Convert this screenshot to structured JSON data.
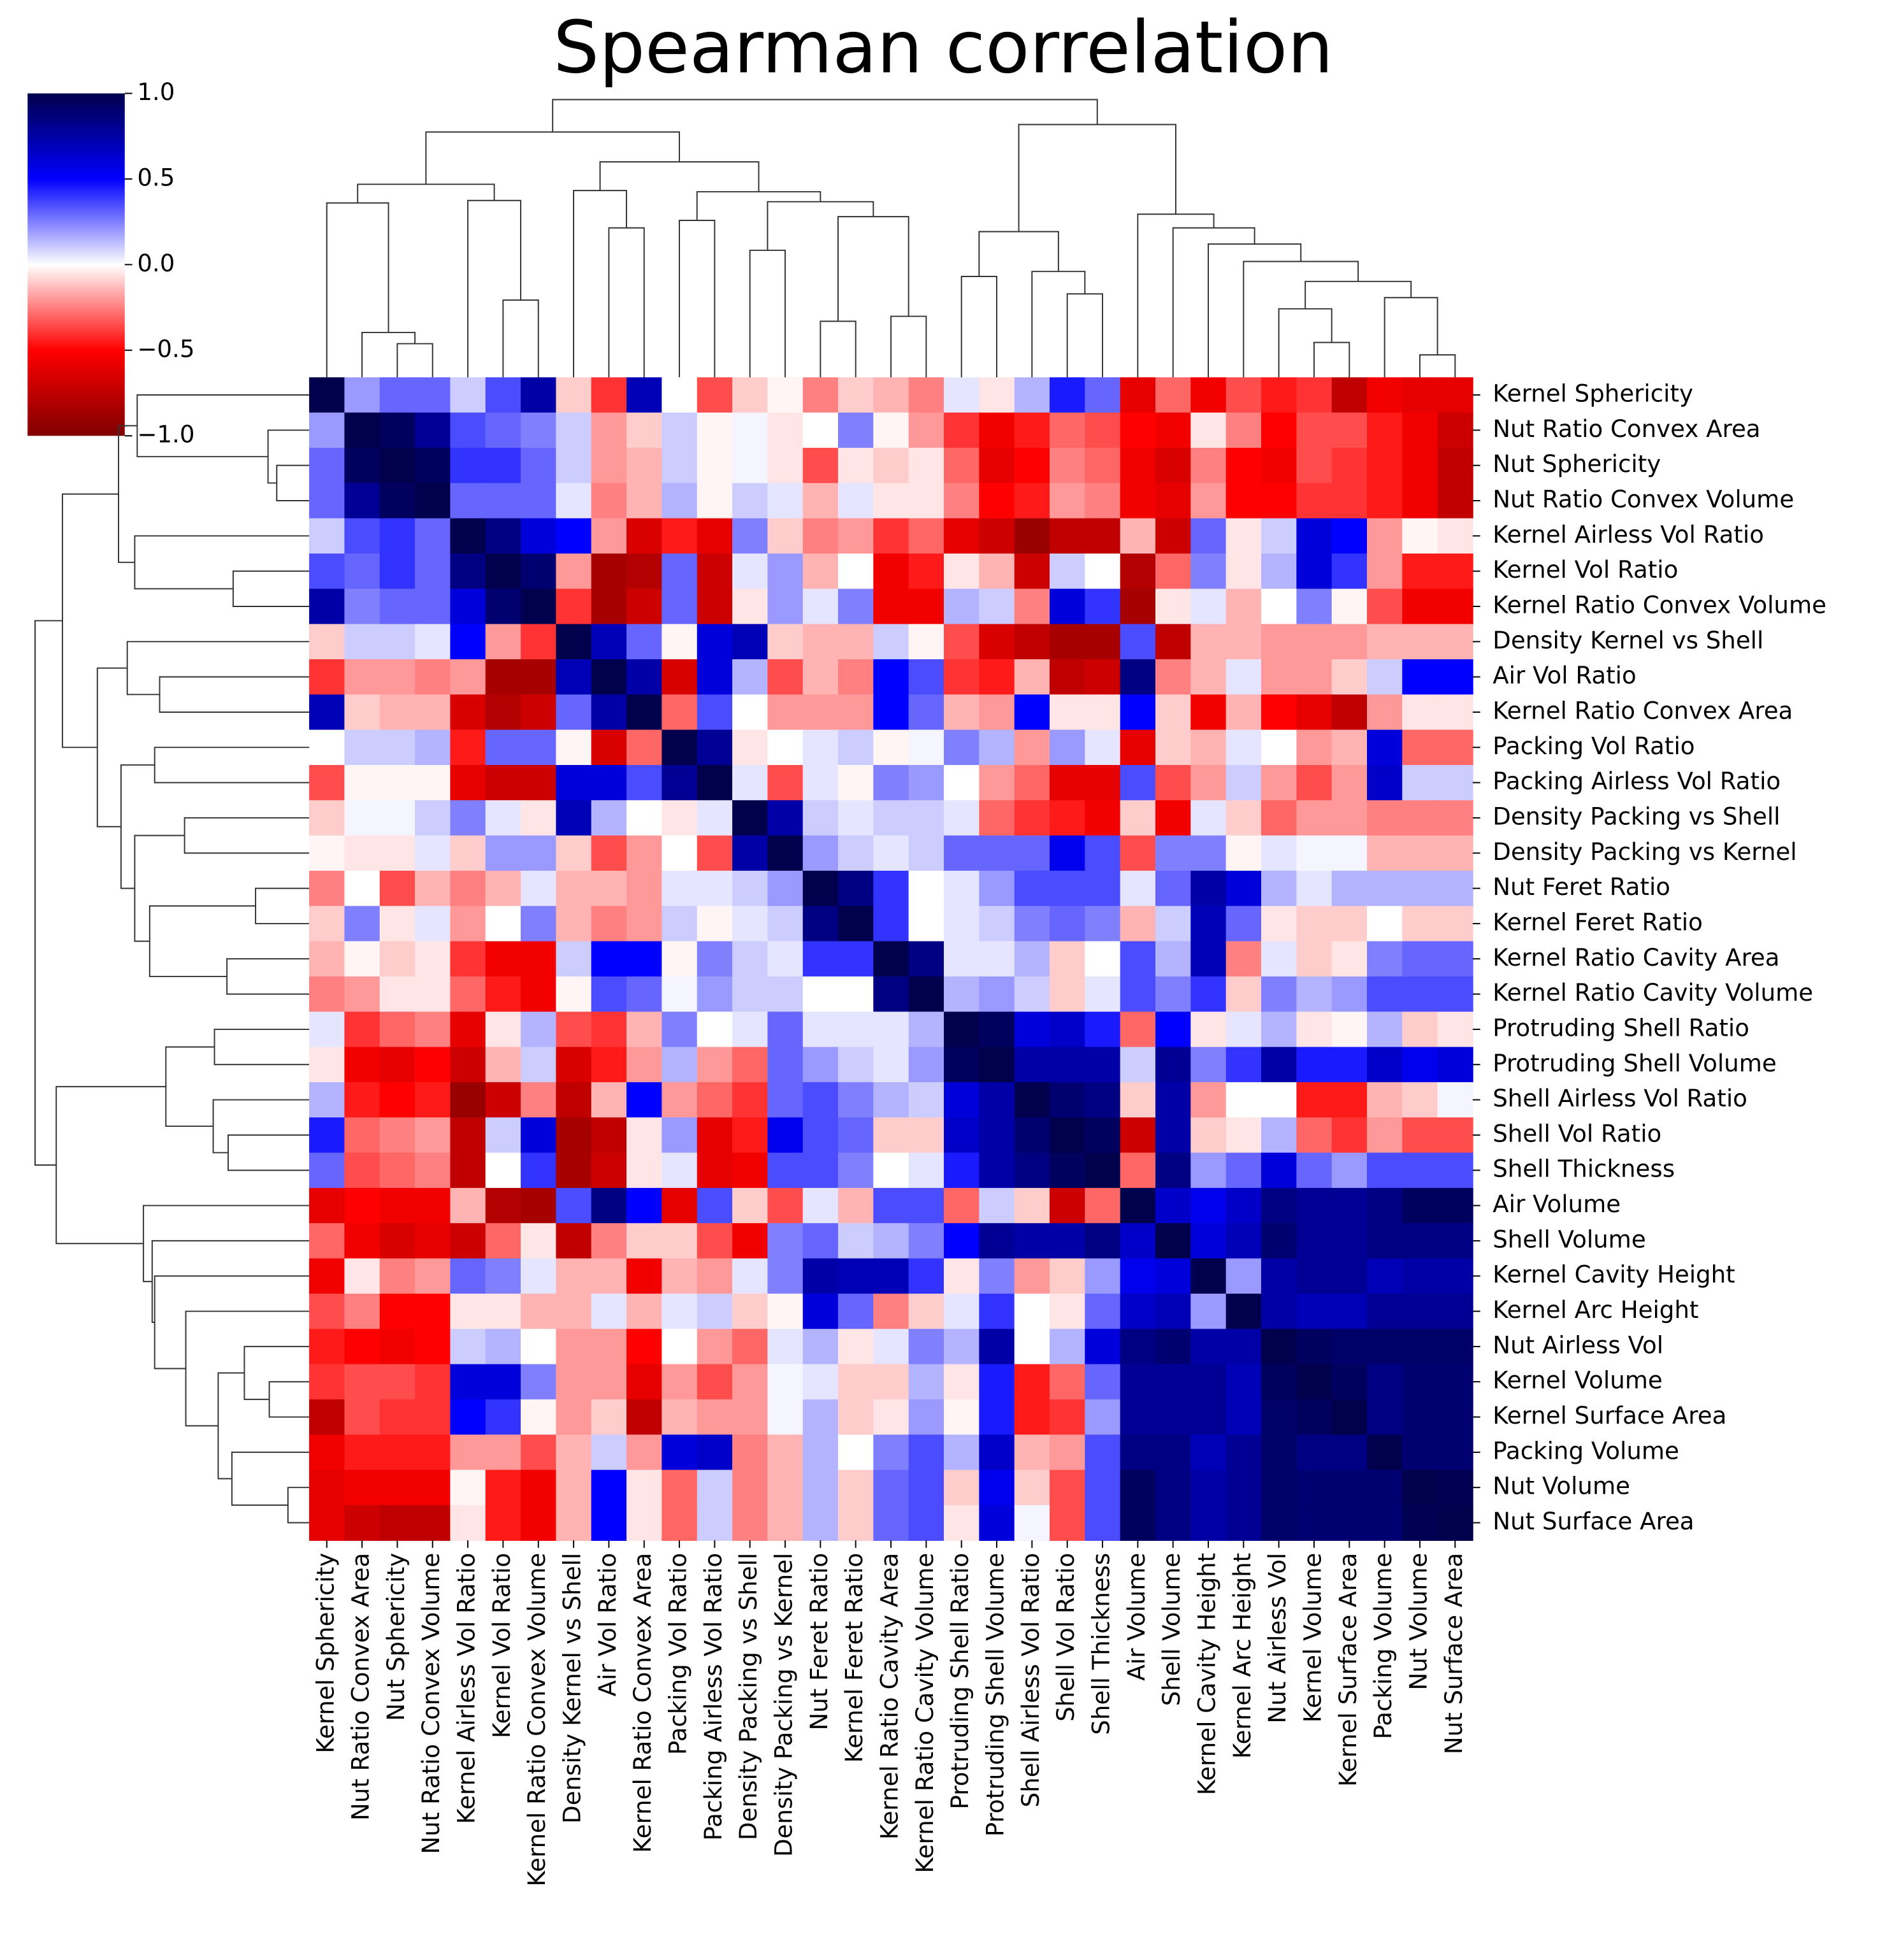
{
  "chart_data": {
    "type": "heatmap",
    "title": "Spearman correlation",
    "categories": [
      "Kernel Sphericity",
      "Nut Ratio Convex Area",
      "Nut Sphericity",
      "Nut Ratio Convex Volume",
      "Kernel Airless Vol Ratio",
      "Kernel Vol Ratio",
      "Kernel Ratio Convex Volume",
      "Density Kernel vs Shell",
      "Air Vol Ratio",
      "Kernel Ratio Convex Area",
      "Packing Vol Ratio",
      "Packing Airless Vol Ratio",
      "Density Packing vs Shell",
      "Density Packing vs Kernel",
      "Nut Feret Ratio",
      "Kernel Feret Ratio",
      "Kernel Ratio Cavity Area",
      "Kernel Ratio Cavity Volume",
      "Protruding Shell Ratio",
      "Protruding Shell Volume",
      "Shell Airless Vol Ratio",
      "Shell Vol Ratio",
      "Shell Thickness",
      "Air Volume",
      "Shell Volume",
      "Kernel Cavity Height",
      "Kernel Arc Height",
      "Nut Airless Vol",
      "Kernel Volume",
      "Kernel Surface Area",
      "Packing Volume",
      "Nut Volume",
      "Nut Surface Area"
    ],
    "values": [
      [
        1,
        0.2,
        0.3,
        0.3,
        0.1,
        0.35,
        0.75,
        -0.1,
        -0.4,
        0.7,
        0,
        -0.35,
        -0.1,
        -0.02,
        -0.25,
        -0.1,
        -0.15,
        -0.25,
        0.05,
        -0.05,
        0.15,
        0.45,
        0.3,
        -0.6,
        -0.3,
        -0.55,
        -0.35,
        -0.45,
        -0.4,
        -0.75,
        -0.55,
        -0.6,
        -0.6
      ],
      [
        0.2,
        1,
        0.95,
        0.8,
        0.35,
        0.3,
        0.25,
        0.1,
        -0.2,
        -0.1,
        0.1,
        -0.02,
        0.02,
        -0.05,
        0,
        0.25,
        -0.02,
        -0.2,
        -0.4,
        -0.55,
        -0.45,
        -0.3,
        -0.35,
        -0.5,
        -0.55,
        -0.05,
        -0.25,
        -0.5,
        -0.35,
        -0.35,
        -0.45,
        -0.55,
        -0.7
      ],
      [
        0.3,
        0.95,
        1,
        0.95,
        0.4,
        0.4,
        0.3,
        0.1,
        -0.2,
        -0.15,
        0.1,
        -0.02,
        0.02,
        -0.05,
        -0.35,
        -0.05,
        -0.1,
        -0.05,
        -0.3,
        -0.6,
        -0.5,
        -0.25,
        -0.3,
        -0.55,
        -0.65,
        -0.25,
        -0.5,
        -0.55,
        -0.35,
        -0.4,
        -0.45,
        -0.55,
        -0.75
      ],
      [
        0.3,
        0.8,
        0.95,
        1,
        0.3,
        0.3,
        0.3,
        0.05,
        -0.25,
        -0.15,
        0.15,
        -0.02,
        0.1,
        0.05,
        -0.15,
        0.05,
        -0.05,
        -0.05,
        -0.25,
        -0.5,
        -0.45,
        -0.2,
        -0.25,
        -0.55,
        -0.6,
        -0.2,
        -0.5,
        -0.5,
        -0.4,
        -0.4,
        -0.45,
        -0.55,
        -0.75
      ],
      [
        0.1,
        0.35,
        0.4,
        0.3,
        1,
        0.85,
        0.6,
        0.5,
        -0.2,
        -0.65,
        -0.45,
        -0.6,
        0.25,
        -0.1,
        -0.25,
        -0.2,
        -0.4,
        -0.3,
        -0.6,
        -0.7,
        -0.9,
        -0.75,
        -0.75,
        -0.15,
        -0.7,
        0.3,
        -0.05,
        0.1,
        0.6,
        0.5,
        -0.2,
        -0.02,
        -0.05
      ],
      [
        0.35,
        0.3,
        0.4,
        0.3,
        0.85,
        1,
        0.9,
        -0.2,
        -0.85,
        -0.8,
        0.3,
        -0.7,
        0.05,
        0.2,
        -0.15,
        0,
        -0.55,
        -0.45,
        -0.05,
        -0.15,
        -0.7,
        0.1,
        0,
        -0.8,
        -0.3,
        0.25,
        -0.05,
        0.15,
        0.6,
        0.4,
        -0.2,
        -0.45,
        -0.45
      ],
      [
        0.75,
        0.25,
        0.3,
        0.3,
        0.6,
        0.9,
        1,
        -0.4,
        -0.85,
        -0.7,
        0.3,
        -0.7,
        -0.05,
        0.2,
        0.05,
        0.25,
        -0.55,
        -0.55,
        0.15,
        0.1,
        -0.25,
        0.6,
        0.4,
        -0.85,
        -0.05,
        0.05,
        -0.15,
        0,
        0.25,
        -0.02,
        -0.35,
        -0.55,
        -0.55
      ],
      [
        -0.1,
        0.1,
        0.1,
        0.05,
        0.5,
        -0.2,
        -0.4,
        1,
        0.7,
        0.3,
        -0.02,
        0.6,
        0.7,
        -0.1,
        -0.15,
        -0.15,
        0.1,
        -0.02,
        -0.35,
        -0.65,
        -0.75,
        -0.85,
        -0.85,
        0.35,
        -0.75,
        -0.15,
        -0.15,
        -0.2,
        -0.2,
        -0.2,
        -0.15,
        -0.15,
        -0.15
      ],
      [
        -0.4,
        -0.2,
        -0.2,
        -0.25,
        -0.2,
        -0.85,
        -0.85,
        0.7,
        1,
        0.75,
        -0.65,
        0.6,
        0.15,
        -0.35,
        -0.15,
        -0.25,
        0.5,
        0.35,
        -0.4,
        -0.45,
        -0.15,
        -0.75,
        -0.7,
        0.85,
        -0.25,
        -0.15,
        0.05,
        -0.2,
        -0.2,
        -0.1,
        0.1,
        0.5,
        0.5
      ],
      [
        0.7,
        -0.1,
        -0.15,
        -0.15,
        -0.65,
        -0.8,
        -0.7,
        0.3,
        0.75,
        1,
        -0.3,
        0.35,
        0,
        -0.2,
        -0.2,
        -0.2,
        0.5,
        0.3,
        -0.15,
        -0.2,
        0.5,
        -0.05,
        -0.05,
        0.5,
        -0.1,
        -0.55,
        -0.15,
        -0.5,
        -0.6,
        -0.75,
        -0.2,
        -0.05,
        -0.05
      ],
      [
        0,
        0.1,
        0.1,
        0.15,
        -0.45,
        0.3,
        0.3,
        -0.02,
        -0.65,
        -0.3,
        1,
        0.8,
        -0.05,
        0,
        0.05,
        0.1,
        -0.02,
        0.02,
        0.25,
        0.15,
        -0.2,
        0.2,
        0.05,
        -0.6,
        -0.1,
        -0.15,
        0.05,
        0,
        -0.2,
        -0.15,
        0.6,
        -0.3,
        -0.3
      ],
      [
        -0.35,
        -0.02,
        -0.02,
        -0.02,
        -0.6,
        -0.7,
        -0.7,
        0.6,
        0.6,
        0.35,
        0.8,
        1,
        0.05,
        -0.35,
        0.05,
        -0.02,
        0.25,
        0.2,
        0,
        -0.2,
        -0.3,
        -0.6,
        -0.6,
        0.35,
        -0.35,
        -0.2,
        0.1,
        -0.2,
        -0.35,
        -0.2,
        0.65,
        0.1,
        0.1
      ],
      [
        -0.1,
        0.02,
        0.02,
        0.1,
        0.25,
        0.05,
        -0.05,
        0.7,
        0.15,
        0,
        -0.05,
        0.05,
        1,
        0.75,
        0.1,
        0.05,
        0.1,
        0.1,
        0.05,
        -0.3,
        -0.4,
        -0.45,
        -0.55,
        -0.1,
        -0.55,
        0.05,
        -0.1,
        -0.3,
        -0.2,
        -0.2,
        -0.25,
        -0.25,
        -0.25
      ],
      [
        -0.02,
        -0.05,
        -0.05,
        0.05,
        -0.1,
        0.2,
        0.2,
        -0.1,
        -0.35,
        -0.2,
        0,
        -0.35,
        0.75,
        1,
        0.2,
        0.1,
        0.05,
        0.1,
        0.3,
        0.3,
        0.3,
        0.55,
        0.35,
        -0.35,
        0.25,
        0.25,
        -0.02,
        0.05,
        0.02,
        0.02,
        -0.15,
        -0.15,
        -0.15
      ],
      [
        -0.25,
        0,
        -0.35,
        -0.15,
        -0.25,
        -0.15,
        0.05,
        -0.15,
        -0.15,
        -0.2,
        0.05,
        0.05,
        0.1,
        0.2,
        1,
        0.85,
        0.4,
        0,
        0.05,
        0.2,
        0.35,
        0.35,
        0.35,
        0.05,
        0.3,
        0.75,
        0.6,
        0.15,
        0.05,
        0.15,
        0.15,
        0.15,
        0.15
      ],
      [
        -0.1,
        0.25,
        -0.05,
        0.05,
        -0.2,
        0,
        0.25,
        -0.15,
        -0.25,
        -0.2,
        0.1,
        -0.02,
        0.05,
        0.1,
        0.85,
        1,
        0.4,
        0,
        0.05,
        0.1,
        0.25,
        0.3,
        0.25,
        -0.15,
        0.1,
        0.7,
        0.3,
        -0.05,
        -0.1,
        -0.1,
        0,
        -0.1,
        -0.1
      ],
      [
        -0.15,
        -0.02,
        -0.1,
        -0.05,
        -0.4,
        -0.55,
        -0.55,
        0.1,
        0.5,
        0.5,
        -0.02,
        0.25,
        0.1,
        0.05,
        0.4,
        0.4,
        1,
        0.85,
        0.05,
        0.05,
        0.15,
        -0.1,
        0,
        0.35,
        0.15,
        0.7,
        -0.25,
        0.05,
        -0.1,
        -0.05,
        0.25,
        0.3,
        0.3
      ],
      [
        -0.25,
        -0.2,
        -0.05,
        -0.05,
        -0.3,
        -0.45,
        -0.55,
        -0.02,
        0.35,
        0.3,
        0.02,
        0.2,
        0.1,
        0.1,
        0,
        0,
        0.85,
        1,
        0.15,
        0.2,
        0.1,
        -0.1,
        0.05,
        0.35,
        0.25,
        0.4,
        -0.1,
        0.25,
        0.15,
        0.2,
        0.35,
        0.35,
        0.35
      ],
      [
        0.05,
        -0.4,
        -0.3,
        -0.25,
        -0.6,
        -0.05,
        0.15,
        -0.35,
        -0.4,
        -0.15,
        0.25,
        0,
        0.05,
        0.3,
        0.05,
        0.05,
        0.05,
        0.15,
        1,
        0.95,
        0.6,
        0.65,
        0.45,
        -0.3,
        0.5,
        -0.05,
        0.05,
        0.15,
        -0.05,
        -0.02,
        0.15,
        -0.1,
        -0.05
      ],
      [
        -0.05,
        -0.55,
        -0.6,
        -0.5,
        -0.7,
        -0.15,
        0.1,
        -0.65,
        -0.45,
        -0.2,
        0.15,
        -0.2,
        -0.3,
        0.3,
        0.2,
        0.1,
        0.05,
        0.2,
        0.95,
        1,
        0.75,
        0.75,
        0.75,
        0.1,
        0.8,
        0.25,
        0.4,
        0.75,
        0.45,
        0.45,
        0.65,
        0.55,
        0.6
      ],
      [
        0.15,
        -0.45,
        -0.5,
        -0.45,
        -0.9,
        -0.7,
        -0.25,
        -0.75,
        -0.15,
        0.5,
        -0.2,
        -0.3,
        -0.4,
        0.3,
        0.35,
        0.25,
        0.15,
        0.1,
        0.6,
        0.75,
        1,
        0.9,
        0.85,
        -0.1,
        0.75,
        -0.2,
        0,
        0,
        -0.45,
        -0.45,
        -0.15,
        -0.1,
        0.02
      ],
      [
        0.45,
        -0.3,
        -0.25,
        -0.2,
        -0.75,
        0.1,
        0.6,
        -0.85,
        -0.75,
        -0.05,
        0.2,
        -0.6,
        -0.45,
        0.55,
        0.35,
        0.3,
        -0.1,
        -0.1,
        0.65,
        0.75,
        0.9,
        1,
        0.95,
        -0.7,
        0.75,
        -0.1,
        -0.05,
        0.15,
        -0.3,
        -0.4,
        -0.2,
        -0.35,
        -0.35
      ],
      [
        0.3,
        -0.35,
        -0.3,
        -0.25,
        -0.75,
        0,
        0.4,
        -0.85,
        -0.7,
        -0.05,
        0.05,
        -0.6,
        -0.55,
        0.35,
        0.35,
        0.25,
        0,
        0.05,
        0.45,
        0.75,
        0.85,
        0.95,
        1,
        -0.3,
        0.85,
        0.2,
        0.3,
        0.6,
        0.3,
        0.2,
        0.35,
        0.35,
        0.35
      ],
      [
        -0.6,
        -0.5,
        -0.55,
        -0.55,
        -0.15,
        -0.8,
        -0.85,
        0.35,
        0.85,
        0.5,
        -0.6,
        0.35,
        -0.1,
        -0.35,
        0.05,
        -0.15,
        0.35,
        0.35,
        -0.3,
        0.1,
        -0.1,
        -0.7,
        -0.3,
        1,
        0.65,
        0.55,
        0.65,
        0.85,
        0.8,
        0.8,
        0.85,
        0.95,
        0.95
      ],
      [
        -0.3,
        -0.55,
        -0.65,
        -0.6,
        -0.7,
        -0.3,
        -0.05,
        -0.75,
        -0.25,
        -0.1,
        -0.1,
        -0.35,
        -0.55,
        0.25,
        0.3,
        0.1,
        0.15,
        0.25,
        0.5,
        0.8,
        0.75,
        0.75,
        0.85,
        0.65,
        1,
        0.6,
        0.7,
        0.9,
        0.8,
        0.8,
        0.85,
        0.85,
        0.85
      ],
      [
        -0.55,
        -0.05,
        -0.25,
        -0.2,
        0.3,
        0.25,
        0.05,
        -0.15,
        -0.15,
        -0.55,
        -0.15,
        -0.2,
        0.05,
        0.25,
        0.75,
        0.7,
        0.7,
        0.4,
        -0.05,
        0.25,
        -0.2,
        -0.1,
        0.2,
        0.55,
        0.6,
        1,
        0.2,
        0.75,
        0.8,
        0.8,
        0.7,
        0.75,
        0.75
      ],
      [
        -0.35,
        -0.25,
        -0.5,
        -0.5,
        -0.05,
        -0.05,
        -0.15,
        -0.15,
        0.05,
        -0.15,
        0.05,
        0.1,
        -0.1,
        -0.02,
        0.6,
        0.3,
        -0.25,
        -0.1,
        0.05,
        0.4,
        0,
        -0.05,
        0.3,
        0.65,
        0.7,
        0.2,
        1,
        0.75,
        0.7,
        0.7,
        0.8,
        0.8,
        0.8
      ],
      [
        -0.45,
        -0.5,
        -0.55,
        -0.5,
        0.1,
        0.15,
        0,
        -0.2,
        -0.2,
        -0.5,
        0,
        -0.2,
        -0.3,
        0.05,
        0.15,
        -0.05,
        0.05,
        0.25,
        0.15,
        0.75,
        0,
        0.15,
        0.6,
        0.85,
        0.9,
        0.75,
        0.75,
        1,
        0.95,
        0.92,
        0.92,
        0.92,
        0.92
      ],
      [
        -0.4,
        -0.35,
        -0.35,
        -0.4,
        0.6,
        0.6,
        0.25,
        -0.2,
        -0.2,
        -0.6,
        -0.2,
        -0.35,
        -0.2,
        0.02,
        0.05,
        -0.1,
        -0.1,
        0.15,
        -0.05,
        0.45,
        -0.45,
        -0.3,
        0.3,
        0.8,
        0.8,
        0.8,
        0.7,
        0.95,
        1,
        0.95,
        0.85,
        0.9,
        0.9
      ],
      [
        -0.75,
        -0.35,
        -0.4,
        -0.4,
        0.5,
        0.4,
        -0.02,
        -0.2,
        -0.1,
        -0.75,
        -0.15,
        -0.2,
        -0.2,
        0.02,
        0.15,
        -0.1,
        -0.05,
        0.2,
        -0.02,
        0.45,
        -0.45,
        -0.4,
        0.2,
        0.8,
        0.8,
        0.8,
        0.7,
        0.92,
        0.95,
        1,
        0.85,
        0.9,
        0.9
      ],
      [
        -0.55,
        -0.45,
        -0.45,
        -0.45,
        -0.2,
        -0.2,
        -0.35,
        -0.15,
        0.1,
        -0.2,
        0.6,
        0.65,
        -0.25,
        -0.15,
        0.15,
        0,
        0.25,
        0.35,
        0.15,
        0.65,
        -0.15,
        -0.2,
        0.35,
        0.85,
        0.85,
        0.7,
        0.8,
        0.92,
        0.85,
        0.85,
        1,
        0.9,
        0.9
      ],
      [
        -0.6,
        -0.55,
        -0.55,
        -0.55,
        -0.02,
        -0.45,
        -0.55,
        -0.15,
        0.5,
        -0.05,
        -0.3,
        0.1,
        -0.25,
        -0.15,
        0.15,
        -0.1,
        0.3,
        0.35,
        -0.1,
        0.55,
        -0.1,
        -0.35,
        0.35,
        0.95,
        0.85,
        0.75,
        0.8,
        0.92,
        0.9,
        0.9,
        0.9,
        1,
        0.98
      ],
      [
        -0.6,
        -0.7,
        -0.75,
        -0.75,
        -0.05,
        -0.45,
        -0.55,
        -0.15,
        0.5,
        -0.05,
        -0.3,
        0.1,
        -0.25,
        -0.15,
        0.15,
        -0.1,
        0.3,
        0.35,
        -0.05,
        0.6,
        0.02,
        -0.35,
        0.35,
        0.95,
        0.85,
        0.75,
        0.8,
        0.92,
        0.9,
        0.9,
        0.9,
        0.98,
        1
      ]
    ],
    "colormap": [
      "#800000",
      "#ff0000",
      "#ffffff",
      "#0000ff",
      "#00004c"
    ],
    "clim": [
      -1,
      1
    ],
    "cticks": [
      {
        "value": -1,
        "label": "−1.0"
      },
      {
        "value": -0.5,
        "label": "−0.5"
      },
      {
        "value": 0,
        "label": "0.0"
      },
      {
        "value": 0.5,
        "label": "0.5"
      },
      {
        "value": 1,
        "label": "1.0"
      }
    ]
  }
}
